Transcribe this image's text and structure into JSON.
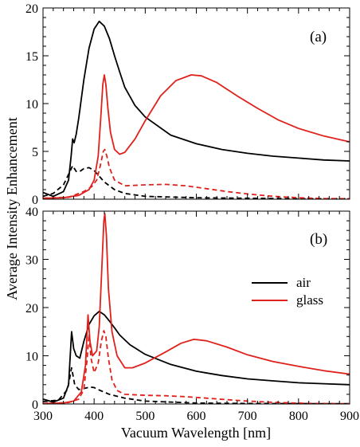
{
  "figure": {
    "ylabel": "Average Intensity Enhancement",
    "xlabel": "Vacuum Wavelength [nm]"
  },
  "colors": {
    "air": "#000000",
    "glass": "#e0201b"
  },
  "chart_data": [
    {
      "type": "line",
      "panel_label": "(a)",
      "xlim": [
        300,
        900
      ],
      "ylim": [
        0,
        20
      ],
      "x_ticks": [
        300,
        400,
        500,
        600,
        700,
        800,
        900
      ],
      "y_ticks": [
        0,
        5,
        10,
        15,
        20
      ],
      "y_tick_labels": [
        "0",
        "5",
        "10",
        "15",
        "20"
      ],
      "grid": false,
      "series": [
        {
          "name": "air",
          "key": "air_solid",
          "color": "#000000",
          "dash": "solid",
          "points": [
            [
              300,
              0.7
            ],
            [
              320,
              0.3
            ],
            [
              340,
              0.8
            ],
            [
              350,
              2.0
            ],
            [
              355,
              4.5
            ],
            [
              358,
              6.3
            ],
            [
              361,
              5.9
            ],
            [
              365,
              6.8
            ],
            [
              370,
              8.5
            ],
            [
              380,
              12.5
            ],
            [
              390,
              15.8
            ],
            [
              400,
              17.8
            ],
            [
              410,
              18.6
            ],
            [
              420,
              18.1
            ],
            [
              430,
              16.8
            ],
            [
              440,
              15.0
            ],
            [
              450,
              13.3
            ],
            [
              460,
              11.7
            ],
            [
              480,
              9.8
            ],
            [
              500,
              8.6
            ],
            [
              550,
              6.7
            ],
            [
              600,
              5.8
            ],
            [
              650,
              5.2
            ],
            [
              700,
              4.8
            ],
            [
              750,
              4.5
            ],
            [
              800,
              4.3
            ],
            [
              850,
              4.1
            ],
            [
              900,
              4.0
            ]
          ]
        },
        {
          "name": "air",
          "key": "air_dashed",
          "color": "#000000",
          "dash": "dashed",
          "points": [
            [
              300,
              0.3
            ],
            [
              320,
              0.6
            ],
            [
              340,
              1.5
            ],
            [
              350,
              2.6
            ],
            [
              358,
              3.5
            ],
            [
              365,
              2.9
            ],
            [
              372,
              2.9
            ],
            [
              380,
              3.2
            ],
            [
              390,
              3.3
            ],
            [
              400,
              3.0
            ],
            [
              410,
              2.4
            ],
            [
              420,
              1.8
            ],
            [
              440,
              1.0
            ],
            [
              460,
              0.6
            ],
            [
              500,
              0.3
            ],
            [
              600,
              0.15
            ],
            [
              700,
              0.1
            ],
            [
              800,
              0.05
            ],
            [
              900,
              0.05
            ]
          ]
        },
        {
          "name": "glass",
          "key": "glass_solid",
          "color": "#e0201b",
          "dash": "solid",
          "points": [
            [
              300,
              0.1
            ],
            [
              340,
              0.15
            ],
            [
              370,
              0.4
            ],
            [
              390,
              1.0
            ],
            [
              400,
              2.0
            ],
            [
              408,
              4.5
            ],
            [
              413,
              8.5
            ],
            [
              417,
              12.0
            ],
            [
              420,
              13.0
            ],
            [
              423,
              12.0
            ],
            [
              427,
              9.5
            ],
            [
              432,
              7.0
            ],
            [
              440,
              5.2
            ],
            [
              450,
              4.7
            ],
            [
              460,
              4.9
            ],
            [
              480,
              6.3
            ],
            [
              500,
              8.2
            ],
            [
              530,
              10.8
            ],
            [
              560,
              12.4
            ],
            [
              590,
              13.0
            ],
            [
              610,
              12.9
            ],
            [
              640,
              12.2
            ],
            [
              680,
              10.8
            ],
            [
              720,
              9.5
            ],
            [
              760,
              8.3
            ],
            [
              800,
              7.4
            ],
            [
              850,
              6.6
            ],
            [
              900,
              6.0
            ]
          ]
        },
        {
          "name": "glass",
          "key": "glass_dashed",
          "color": "#e0201b",
          "dash": "dashed",
          "points": [
            [
              300,
              0.1
            ],
            [
              350,
              0.2
            ],
            [
              380,
              0.8
            ],
            [
              395,
              1.3
            ],
            [
              405,
              2.0
            ],
            [
              412,
              3.5
            ],
            [
              418,
              5.0
            ],
            [
              421,
              5.2
            ],
            [
              425,
              4.5
            ],
            [
              430,
              3.3
            ],
            [
              440,
              2.0
            ],
            [
              460,
              1.4
            ],
            [
              500,
              1.5
            ],
            [
              540,
              1.55
            ],
            [
              580,
              1.4
            ],
            [
              620,
              1.1
            ],
            [
              660,
              0.8
            ],
            [
              700,
              0.55
            ],
            [
              750,
              0.3
            ],
            [
              800,
              0.15
            ],
            [
              850,
              0.07
            ],
            [
              900,
              0.05
            ]
          ]
        }
      ]
    },
    {
      "type": "line",
      "panel_label": "(b)",
      "xlim": [
        300,
        900
      ],
      "ylim": [
        0,
        40
      ],
      "x_ticks": [
        300,
        400,
        500,
        600,
        700,
        800,
        900
      ],
      "x_tick_labels": [
        "300",
        "400",
        "500",
        "600",
        "700",
        "800",
        "900"
      ],
      "y_ticks": [
        0,
        10,
        20,
        30,
        40
      ],
      "y_tick_labels": [
        "0",
        "10",
        "20",
        "30",
        "40"
      ],
      "grid": false,
      "legend": {
        "position": "right-middle",
        "entries": [
          {
            "label": "air",
            "color": "#000000"
          },
          {
            "label": "glass",
            "color": "#e0201b"
          }
        ]
      },
      "series": [
        {
          "name": "air",
          "key": "air_solid",
          "color": "#000000",
          "dash": "solid",
          "points": [
            [
              300,
              1.0
            ],
            [
              320,
              0.4
            ],
            [
              340,
              1.2
            ],
            [
              350,
              4.0
            ],
            [
              356,
              15.0
            ],
            [
              360,
              11.5
            ],
            [
              365,
              10.0
            ],
            [
              372,
              9.5
            ],
            [
              380,
              13.0
            ],
            [
              390,
              16.5
            ],
            [
              400,
              18.3
            ],
            [
              410,
              19.2
            ],
            [
              420,
              18.5
            ],
            [
              430,
              17.2
            ],
            [
              440,
              15.8
            ],
            [
              450,
              14.3
            ],
            [
              470,
              12.3
            ],
            [
              500,
              10.3
            ],
            [
              550,
              8.2
            ],
            [
              600,
              6.8
            ],
            [
              650,
              5.9
            ],
            [
              700,
              5.2
            ],
            [
              750,
              4.8
            ],
            [
              800,
              4.4
            ],
            [
              850,
              4.2
            ],
            [
              900,
              4.0
            ]
          ]
        },
        {
          "name": "air",
          "key": "air_dashed",
          "color": "#000000",
          "dash": "dashed",
          "points": [
            [
              300,
              0.5
            ],
            [
              330,
              0.8
            ],
            [
              348,
              3.0
            ],
            [
              356,
              7.5
            ],
            [
              362,
              4.0
            ],
            [
              370,
              3.0
            ],
            [
              380,
              3.2
            ],
            [
              392,
              3.5
            ],
            [
              400,
              3.4
            ],
            [
              410,
              2.9
            ],
            [
              430,
              2.0
            ],
            [
              460,
              1.2
            ],
            [
              500,
              0.6
            ],
            [
              600,
              0.2
            ],
            [
              700,
              0.1
            ],
            [
              900,
              0.05
            ]
          ]
        },
        {
          "name": "glass",
          "key": "glass_solid",
          "color": "#e0201b",
          "dash": "solid",
          "points": [
            [
              300,
              0.1
            ],
            [
              340,
              0.2
            ],
            [
              360,
              0.6
            ],
            [
              375,
              2.5
            ],
            [
              383,
              8.0
            ],
            [
              388,
              18.5
            ],
            [
              392,
              13.0
            ],
            [
              397,
              10.0
            ],
            [
              405,
              11.0
            ],
            [
              410,
              16.0
            ],
            [
              415,
              28.0
            ],
            [
              419,
              38.0
            ],
            [
              421,
              39.5
            ],
            [
              424,
              35.0
            ],
            [
              428,
              24.0
            ],
            [
              435,
              15.0
            ],
            [
              445,
              10.0
            ],
            [
              460,
              7.5
            ],
            [
              475,
              7.5
            ],
            [
              500,
              8.5
            ],
            [
              540,
              10.8
            ],
            [
              570,
              12.6
            ],
            [
              595,
              13.4
            ],
            [
              620,
              13.1
            ],
            [
              660,
              11.8
            ],
            [
              700,
              10.2
            ],
            [
              750,
              8.8
            ],
            [
              800,
              7.8
            ],
            [
              850,
              6.9
            ],
            [
              900,
              6.2
            ]
          ]
        },
        {
          "name": "glass",
          "key": "glass_dashed",
          "color": "#e0201b",
          "dash": "dashed",
          "points": [
            [
              300,
              0.1
            ],
            [
              350,
              0.3
            ],
            [
              370,
              1.0
            ],
            [
              380,
              3.0
            ],
            [
              386,
              9.0
            ],
            [
              390,
              14.5
            ],
            [
              394,
              9.5
            ],
            [
              400,
              6.5
            ],
            [
              408,
              8.5
            ],
            [
              414,
              13.0
            ],
            [
              419,
              15.2
            ],
            [
              423,
              14.0
            ],
            [
              428,
              9.5
            ],
            [
              435,
              5.0
            ],
            [
              445,
              2.8
            ],
            [
              460,
              2.0
            ],
            [
              500,
              1.8
            ],
            [
              540,
              1.7
            ],
            [
              580,
              1.5
            ],
            [
              620,
              1.2
            ],
            [
              660,
              0.9
            ],
            [
              700,
              0.6
            ],
            [
              760,
              0.3
            ],
            [
              820,
              0.12
            ],
            [
              900,
              0.05
            ]
          ]
        }
      ]
    }
  ]
}
